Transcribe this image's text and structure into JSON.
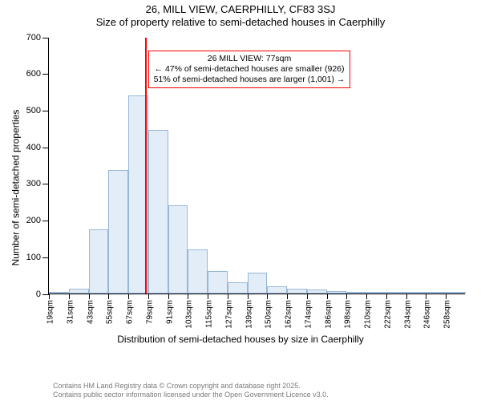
{
  "title": {
    "line1": "26, MILL VIEW, CAERPHILLY, CF83 3SJ",
    "line2": "Size of property relative to semi-detached houses in Caerphilly"
  },
  "axes": {
    "ylabel": "Number of semi-detached properties",
    "xlabel": "Distribution of semi-detached houses by size in Caerphilly",
    "ylim": [
      0,
      700
    ],
    "ytick_step": 100
  },
  "histogram": {
    "type": "histogram",
    "bin_width_sqm": 12,
    "bin_start_sqm": 19,
    "categories": [
      "19sqm",
      "31sqm",
      "43sqm",
      "55sqm",
      "67sqm",
      "79sqm",
      "91sqm",
      "103sqm",
      "115sqm",
      "127sqm",
      "139sqm",
      "150sqm",
      "162sqm",
      "174sqm",
      "186sqm",
      "198sqm",
      "210sqm",
      "222sqm",
      "234sqm",
      "246sqm",
      "258sqm"
    ],
    "values": [
      3,
      12,
      175,
      335,
      540,
      445,
      240,
      120,
      60,
      30,
      55,
      18,
      12,
      10,
      5,
      3,
      2,
      2,
      1,
      1,
      0
    ],
    "bar_fill": "#e3edf8",
    "bar_stroke": "#97b7d9",
    "background": "#ffffff"
  },
  "reference": {
    "value_sqm": 77,
    "line_color": "#ff0000"
  },
  "annotation": {
    "line1": "26 MILL VIEW: 77sqm",
    "line2": "← 47% of semi-detached houses are smaller (926)",
    "line3": "51% of semi-detached houses are larger (1,001) →",
    "border_color": "#ff0000",
    "fontsize": 10.5
  },
  "footer": {
    "line1": "Contains HM Land Registry data © Crown copyright and database right 2025.",
    "line2": "Contains public sector information licensed under the Open Government Licence v3.0.",
    "color": "#7a7a7a"
  }
}
